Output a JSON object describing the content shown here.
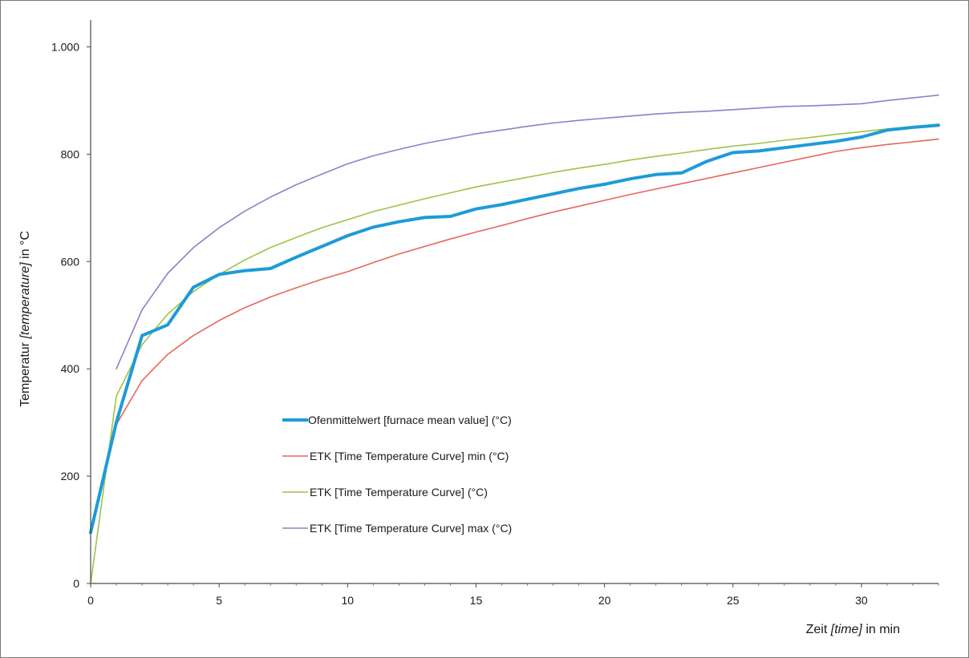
{
  "chart_data": {
    "type": "line",
    "xlabel_parts": [
      "Zeit ",
      "[time]",
      " in min"
    ],
    "ylabel_parts": [
      "Temperatur ",
      "[temperature]",
      " in °C"
    ],
    "xlim": [
      0,
      33
    ],
    "ylim": [
      0,
      1050
    ],
    "x_ticks": [
      0,
      5,
      10,
      15,
      20,
      25,
      30
    ],
    "x_tick_labels": [
      "0",
      "5",
      "10",
      "15",
      "20",
      "25",
      "30"
    ],
    "y_ticks": [
      0,
      200,
      400,
      600,
      800,
      1000
    ],
    "y_tick_labels": [
      "0",
      "200",
      "400",
      "600",
      "800",
      "1.000"
    ],
    "grid": false,
    "legend_position": "center-left",
    "series": [
      {
        "name": "Ofenmittelwert [furnace mean value] (°C)",
        "color": "#1e9bd7",
        "x": [
          0,
          1,
          2,
          3,
          4,
          5,
          6,
          7,
          8,
          9,
          10,
          11,
          12,
          13,
          14,
          15,
          16,
          17,
          18,
          19,
          20,
          21,
          22,
          23,
          24,
          25,
          26,
          27,
          28,
          29,
          30,
          31,
          32,
          33
        ],
        "y": [
          95,
          300,
          462,
          482,
          552,
          576,
          583,
          587,
          608,
          628,
          648,
          664,
          674,
          682,
          684,
          698,
          706,
          716,
          726,
          736,
          744,
          754,
          762,
          765,
          787,
          803,
          806,
          812,
          818,
          824,
          832,
          845,
          850,
          854
        ]
      },
      {
        "name": "ETK  [Time Temperature Curve]  min (°C)",
        "color": "#e8665a",
        "x": [
          1,
          2,
          3,
          4,
          5,
          6,
          7,
          8,
          9,
          10,
          11,
          12,
          13,
          14,
          15,
          16,
          17,
          18,
          19,
          20,
          21,
          22,
          23,
          24,
          25,
          26,
          27,
          28,
          29,
          30,
          31,
          32,
          33
        ],
        "y": [
          296,
          378,
          427,
          462,
          490,
          514,
          534,
          551,
          567,
          581,
          598,
          614,
          628,
          642,
          655,
          667,
          680,
          692,
          703,
          714,
          725,
          735,
          745,
          755,
          765,
          775,
          785,
          795,
          805,
          812,
          818,
          823,
          828
        ]
      },
      {
        "name": "ETK  [Time Temperature Curve]  (°C)",
        "color": "#9cc448",
        "x": [
          0,
          1,
          2,
          3,
          4,
          5,
          6,
          7,
          8,
          9,
          10,
          11,
          12,
          13,
          14,
          15,
          16,
          17,
          18,
          19,
          20,
          21,
          22,
          23,
          24,
          25,
          26,
          27,
          28,
          29,
          30,
          31,
          32,
          33
        ],
        "y": [
          0,
          349,
          445,
          502,
          544,
          576,
          603,
          626,
          645,
          663,
          678,
          693,
          705,
          717,
          728,
          739,
          748,
          757,
          766,
          774,
          781,
          789,
          796,
          802,
          809,
          815,
          820,
          826,
          831,
          837,
          842,
          847,
          851,
          856
        ]
      },
      {
        "name": "ETK  [Time Temperature Curve]  max (°C)",
        "color": "#8585c9",
        "x": [
          1,
          2,
          3,
          4,
          5,
          6,
          7,
          8,
          9,
          10,
          11,
          12,
          13,
          14,
          15,
          16,
          17,
          18,
          19,
          20,
          21,
          22,
          23,
          24,
          25,
          26,
          27,
          28,
          29,
          30,
          31,
          32,
          33
        ],
        "y": [
          400,
          510,
          578,
          626,
          663,
          694,
          720,
          743,
          763,
          782,
          797,
          809,
          820,
          829,
          838,
          845,
          852,
          858,
          863,
          867,
          871,
          875,
          878,
          880,
          883,
          886,
          889,
          890,
          892,
          894,
          900,
          905,
          910
        ]
      }
    ]
  }
}
